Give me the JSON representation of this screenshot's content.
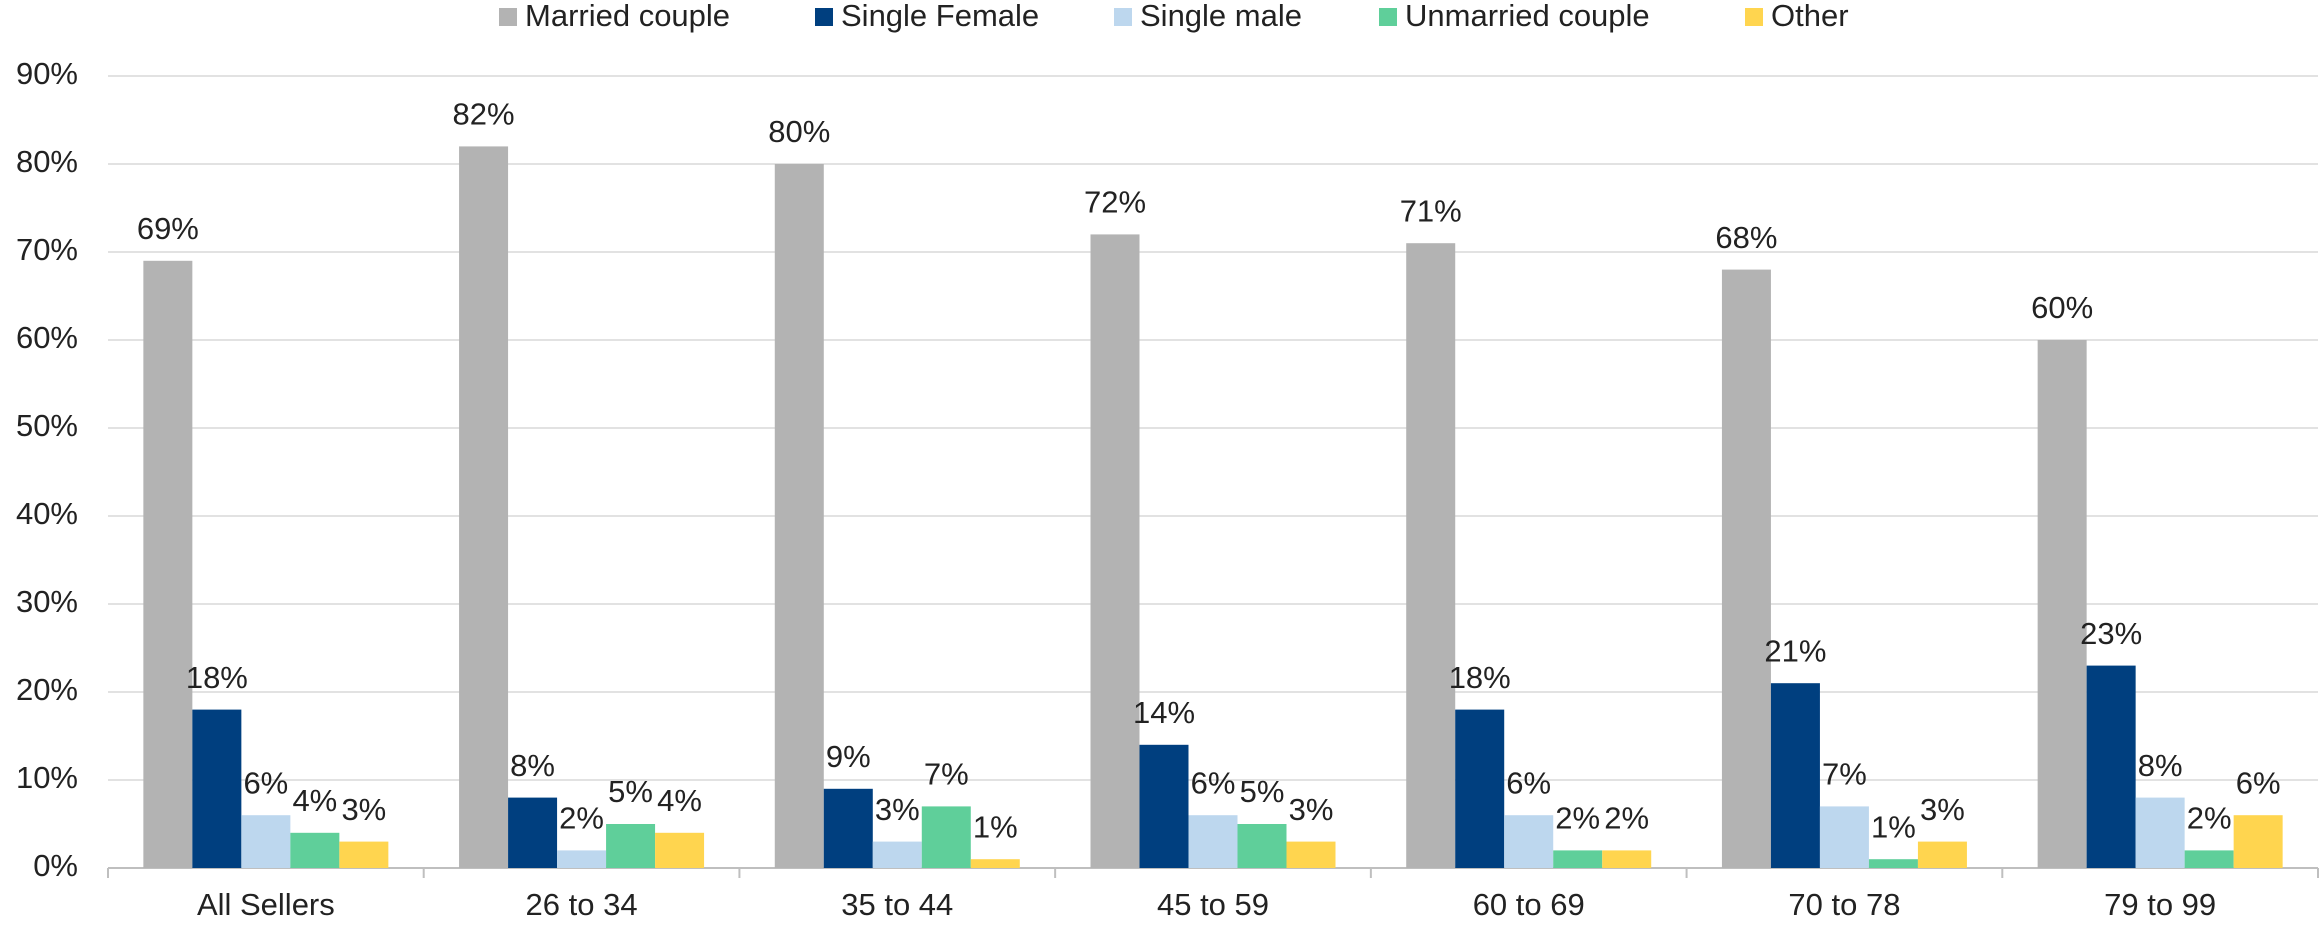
{
  "chart_data": {
    "type": "bar",
    "categories": [
      "All Sellers",
      "26 to 34",
      "35 to 44",
      "45 to 59",
      "60 to 69",
      "70 to 78",
      "79 to 99"
    ],
    "series": [
      {
        "name": "Married couple",
        "color": "#b3b3b3",
        "values": [
          69,
          82,
          80,
          72,
          71,
          68,
          60
        ],
        "value_labels": [
          "69%",
          "82%",
          "80%",
          "72%",
          "71%",
          "68%",
          "60%"
        ]
      },
      {
        "name": "Single Female",
        "color": "#003f7f",
        "values": [
          18,
          8,
          9,
          14,
          18,
          21,
          23
        ],
        "value_labels": [
          "18%",
          "8%",
          "9%",
          "14%",
          "18%",
          "21%",
          "23%"
        ]
      },
      {
        "name": "Single male",
        "color": "#bdd7ee",
        "values": [
          6,
          2,
          3,
          6,
          6,
          7,
          8
        ],
        "value_labels": [
          "6%",
          "2%",
          "3%",
          "6%",
          "6%",
          "7%",
          "8%"
        ]
      },
      {
        "name": "Unmarried couple",
        "color": "#5fcf9a",
        "values": [
          4,
          5,
          7,
          5,
          2,
          1,
          2
        ],
        "value_labels": [
          "4%",
          "5%",
          "7%",
          "5%",
          "2%",
          "1%",
          "2%"
        ]
      },
      {
        "name": "Other",
        "color": "#ffd54f",
        "values": [
          3,
          4,
          1,
          3,
          2,
          3,
          6
        ],
        "value_labels": [
          "3%",
          "4%",
          "1%",
          "3%",
          "2%",
          "3%",
          "6%"
        ]
      }
    ],
    "ylim": [
      0,
      90
    ],
    "yticks": [
      {
        "value": 0,
        "label": "0%"
      },
      {
        "value": 10,
        "label": "10%"
      },
      {
        "value": 20,
        "label": "20%"
      },
      {
        "value": 30,
        "label": "30%"
      },
      {
        "value": 40,
        "label": "40%"
      },
      {
        "value": 50,
        "label": "50%"
      },
      {
        "value": 60,
        "label": "60%"
      },
      {
        "value": 70,
        "label": "70%"
      },
      {
        "value": 80,
        "label": "80%"
      },
      {
        "value": 90,
        "label": "90%"
      }
    ],
    "grid": true,
    "legend": "top"
  }
}
